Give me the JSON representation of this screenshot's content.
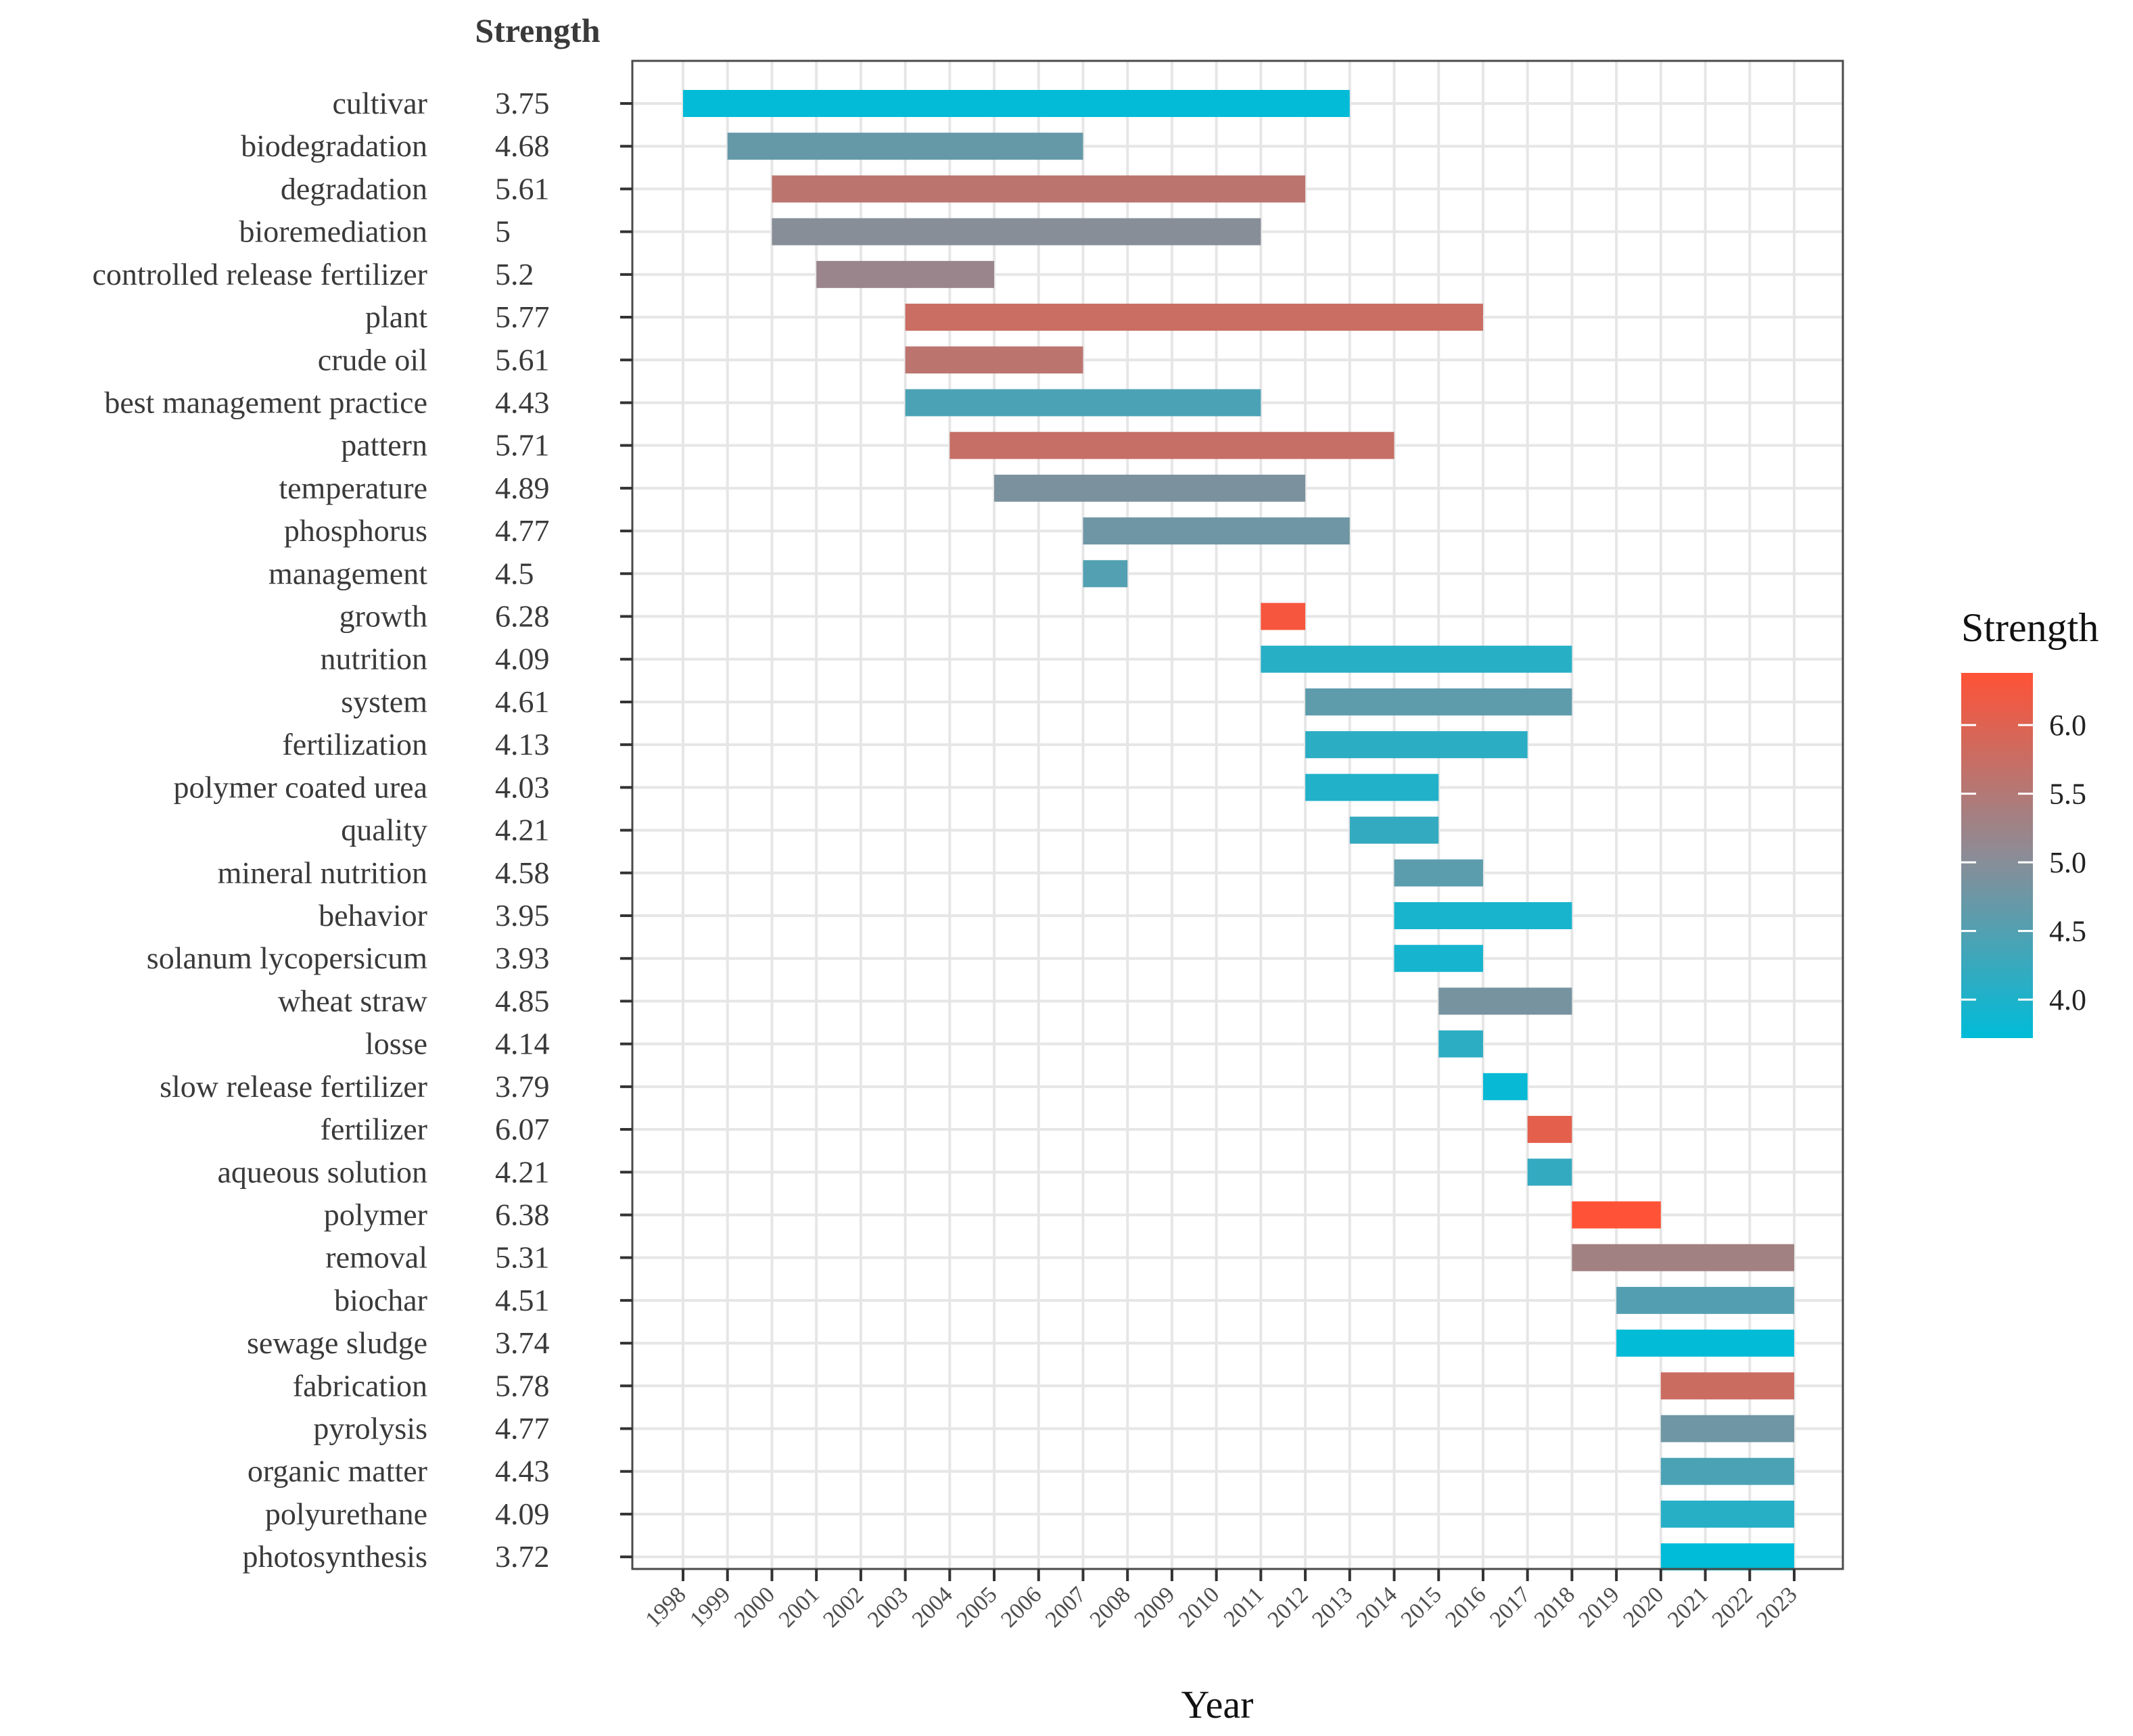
{
  "chart_data": {
    "type": "bar",
    "subtype": "burst-timeline",
    "strength_header": "Strength",
    "xlabel": "Year",
    "years": [
      "1998",
      "1999",
      "2000",
      "2001",
      "2002",
      "2003",
      "2004",
      "2005",
      "2006",
      "2007",
      "2008",
      "2009",
      "2010",
      "2011",
      "2012",
      "2013",
      "2014",
      "2015",
      "2016",
      "2017",
      "2018",
      "2019",
      "2020",
      "2021",
      "2022",
      "2023"
    ],
    "grid": true,
    "legend": {
      "title": "Strength",
      "position": "right",
      "ticks": [
        {
          "value": 4.0,
          "label": "4.0"
        },
        {
          "value": 4.5,
          "label": "4.5"
        },
        {
          "value": 5.0,
          "label": "5.0"
        },
        {
          "value": 5.5,
          "label": "5.5"
        },
        {
          "value": 6.0,
          "label": "6.0"
        }
      ],
      "min": 3.72,
      "max": 6.38,
      "color_low": "#00BCD8",
      "color_high": "#FF5236"
    },
    "rows": [
      {
        "keyword": "cultivar",
        "strength": "3.75",
        "begin": 1998,
        "end": 2013
      },
      {
        "keyword": "biodegradation",
        "strength": "4.68",
        "begin": 1999,
        "end": 2007
      },
      {
        "keyword": "degradation",
        "strength": "5.61",
        "begin": 2000,
        "end": 2012
      },
      {
        "keyword": "bioremediation",
        "strength": "5",
        "begin": 2000,
        "end": 2011
      },
      {
        "keyword": "controlled release fertilizer",
        "strength": "5.2",
        "begin": 2001,
        "end": 2005
      },
      {
        "keyword": "plant",
        "strength": "5.77",
        "begin": 2003,
        "end": 2016
      },
      {
        "keyword": "crude oil",
        "strength": "5.61",
        "begin": 2003,
        "end": 2007
      },
      {
        "keyword": "best management practice",
        "strength": "4.43",
        "begin": 2003,
        "end": 2011
      },
      {
        "keyword": "pattern",
        "strength": "5.71",
        "begin": 2004,
        "end": 2014
      },
      {
        "keyword": "temperature",
        "strength": "4.89",
        "begin": 2005,
        "end": 2012
      },
      {
        "keyword": "phosphorus",
        "strength": "4.77",
        "begin": 2007,
        "end": 2013
      },
      {
        "keyword": "management",
        "strength": "4.5",
        "begin": 2007,
        "end": 2008
      },
      {
        "keyword": "growth",
        "strength": "6.28",
        "begin": 2011,
        "end": 2012
      },
      {
        "keyword": "nutrition",
        "strength": "4.09",
        "begin": 2011,
        "end": 2018
      },
      {
        "keyword": "system",
        "strength": "4.61",
        "begin": 2012,
        "end": 2018
      },
      {
        "keyword": "fertilization",
        "strength": "4.13",
        "begin": 2012,
        "end": 2017
      },
      {
        "keyword": "polymer coated urea",
        "strength": "4.03",
        "begin": 2012,
        "end": 2015
      },
      {
        "keyword": "quality",
        "strength": "4.21",
        "begin": 2013,
        "end": 2015
      },
      {
        "keyword": "mineral nutrition",
        "strength": "4.58",
        "begin": 2014,
        "end": 2016
      },
      {
        "keyword": "behavior",
        "strength": "3.95",
        "begin": 2014,
        "end": 2018
      },
      {
        "keyword": "solanum lycopersicum",
        "strength": "3.93",
        "begin": 2014,
        "end": 2016
      },
      {
        "keyword": "wheat straw",
        "strength": "4.85",
        "begin": 2015,
        "end": 2018
      },
      {
        "keyword": "losse",
        "strength": "4.14",
        "begin": 2015,
        "end": 2016
      },
      {
        "keyword": "slow release fertilizer",
        "strength": "3.79",
        "begin": 2016,
        "end": 2017
      },
      {
        "keyword": "fertilizer",
        "strength": "6.07",
        "begin": 2017,
        "end": 2018
      },
      {
        "keyword": "aqueous solution",
        "strength": "4.21",
        "begin": 2017,
        "end": 2018
      },
      {
        "keyword": "polymer",
        "strength": "6.38",
        "begin": 2018,
        "end": 2020
      },
      {
        "keyword": "removal",
        "strength": "5.31",
        "begin": 2018,
        "end": 2023
      },
      {
        "keyword": "biochar",
        "strength": "4.51",
        "begin": 2019,
        "end": 2023
      },
      {
        "keyword": "sewage sludge",
        "strength": "3.74",
        "begin": 2019,
        "end": 2023
      },
      {
        "keyword": "fabrication",
        "strength": "5.78",
        "begin": 2020,
        "end": 2023
      },
      {
        "keyword": "pyrolysis",
        "strength": "4.77",
        "begin": 2020,
        "end": 2023
      },
      {
        "keyword": "organic matter",
        "strength": "4.43",
        "begin": 2020,
        "end": 2023
      },
      {
        "keyword": "polyurethane",
        "strength": "4.09",
        "begin": 2020,
        "end": 2023
      },
      {
        "keyword": "photosynthesis",
        "strength": "3.72",
        "begin": 2020,
        "end": 2023
      }
    ]
  }
}
